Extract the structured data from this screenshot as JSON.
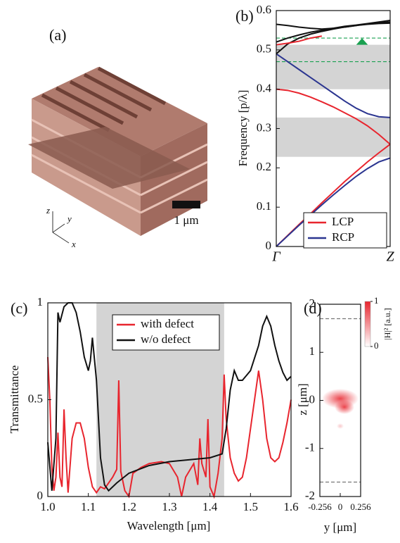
{
  "illustration": {
    "label": "(a)",
    "scale_bar": "1 μm",
    "axes": [
      "z",
      "y",
      "x"
    ]
  },
  "chart_data": [
    {
      "type": "line",
      "label": "(b)",
      "ylabel": "Frequency [p/λ]",
      "xlim": [
        0,
        1
      ],
      "xticks": [
        {
          "value": 0,
          "label": "Γ"
        },
        {
          "value": 1,
          "label": "Z"
        }
      ],
      "ylim": [
        0,
        0.6
      ],
      "yticks": [
        0,
        0.1,
        0.2,
        0.3,
        0.4,
        0.5,
        0.6
      ],
      "bands": [
        [
          0.228,
          0.328
        ],
        [
          0.4,
          0.513
        ]
      ],
      "band_color": "#d4d4d4",
      "hlines": [
        0.47,
        0.53
      ],
      "hline_color": "#1aa050",
      "x": [
        0,
        0.1,
        0.2,
        0.3,
        0.4,
        0.5,
        0.6,
        0.7,
        0.8,
        0.9,
        1
      ],
      "series": [
        {
          "name": "LCP",
          "color": "#e8252e",
          "values": [
            0,
            0.028,
            0.056,
            0.083,
            0.111,
            0.138,
            0.165,
            0.19,
            0.215,
            0.238,
            0.26
          ]
        },
        {
          "name": "RCP",
          "color": "#2b3590",
          "values": [
            0,
            0.027,
            0.054,
            0.08,
            0.106,
            0.131,
            0.155,
            0.178,
            0.198,
            0.215,
            0.225
          ]
        },
        {
          "color": "#e8252e",
          "values": [
            0.4,
            0.397,
            0.39,
            0.38,
            0.368,
            0.355,
            0.34,
            0.325,
            0.307,
            0.285,
            0.26
          ]
        },
        {
          "color": "#2b3590",
          "values": [
            0.49,
            0.47,
            0.45,
            0.43,
            0.41,
            0.39,
            0.37,
            0.352,
            0.338,
            0.33,
            0.328
          ]
        },
        {
          "color": "#111111",
          "values": [
            0.49,
            0.515,
            0.53,
            0.54,
            0.547,
            0.553,
            0.558,
            0.562,
            0.565,
            0.567,
            0.568
          ]
        },
        {
          "color": "#111111",
          "values": [
            0.565,
            0.562,
            0.558,
            0.555,
            0.553,
            0.555,
            0.558,
            0.562,
            0.566,
            0.569,
            0.571
          ]
        },
        {
          "color": "#111111",
          "values": [
            0.52,
            0.53,
            0.538,
            0.545,
            0.55,
            0.555,
            0.56,
            0.563,
            0.567,
            0.571,
            0.575
          ]
        },
        {
          "color": "#e8252e",
          "values": [
            0.513,
            0.517,
            0.522,
            0.53,
            0.535,
            null,
            null,
            null,
            null,
            null,
            null
          ]
        }
      ],
      "legend": "lower right"
    },
    {
      "type": "line",
      "label": "(c)",
      "xlabel": "Wavelength [μm]",
      "ylabel": "Transmittance",
      "xlim": [
        1.0,
        1.6
      ],
      "xticks": [
        {
          "value": 1.0,
          "label": "1.0"
        },
        {
          "value": 1.1,
          "label": "1.1"
        },
        {
          "value": 1.2,
          "label": "1.2"
        },
        {
          "value": 1.3,
          "label": "1.3"
        },
        {
          "value": 1.4,
          "label": "1.4"
        },
        {
          "value": 1.5,
          "label": "1.5"
        },
        {
          "value": 1.6,
          "label": "1.6"
        }
      ],
      "ylim": [
        0,
        1
      ],
      "yticks": [
        0,
        0.5,
        1
      ],
      "shade": [
        1.12,
        1.435
      ],
      "band_color": "#d4d4d4",
      "series": [
        {
          "name": "with defect",
          "color": "#e8252e",
          "x": [
            1.0,
            1.005,
            1.01,
            1.015,
            1.02,
            1.025,
            1.03,
            1.035,
            1.04,
            1.045,
            1.05,
            1.06,
            1.07,
            1.08,
            1.09,
            1.1,
            1.11,
            1.12,
            1.13,
            1.14,
            1.15,
            1.16,
            1.17,
            1.175,
            1.18,
            1.19,
            1.2,
            1.21,
            1.23,
            1.25,
            1.28,
            1.3,
            1.32,
            1.33,
            1.34,
            1.36,
            1.37,
            1.375,
            1.38,
            1.39,
            1.395,
            1.4,
            1.41,
            1.42,
            1.43,
            1.435,
            1.44,
            1.45,
            1.46,
            1.47,
            1.48,
            1.49,
            1.5,
            1.51,
            1.52,
            1.53,
            1.54,
            1.55,
            1.56,
            1.57,
            1.58,
            1.59,
            1.6
          ],
          "values": [
            0.72,
            0.5,
            0.15,
            0.03,
            0.1,
            0.33,
            0.1,
            0.05,
            0.45,
            0.2,
            0.02,
            0.3,
            0.38,
            0.38,
            0.3,
            0.15,
            0.05,
            0.02,
            0.05,
            0.04,
            0.07,
            0.1,
            0.14,
            0.6,
            0.13,
            0.03,
            0.0,
            0.12,
            0.15,
            0.17,
            0.18,
            0.17,
            0.1,
            0.0,
            0.1,
            0.17,
            0.06,
            0.3,
            0.17,
            0.1,
            0.4,
            0.05,
            0.0,
            0.12,
            0.3,
            0.63,
            0.4,
            0.2,
            0.12,
            0.08,
            0.1,
            0.2,
            0.35,
            0.5,
            0.65,
            0.5,
            0.3,
            0.2,
            0.18,
            0.2,
            0.28,
            0.38,
            0.5
          ]
        },
        {
          "name": "w/o defect",
          "color": "#111111",
          "x": [
            1.0,
            1.01,
            1.02,
            1.025,
            1.03,
            1.04,
            1.05,
            1.06,
            1.07,
            1.08,
            1.09,
            1.1,
            1.105,
            1.11,
            1.12,
            1.13,
            1.14,
            1.15,
            1.17,
            1.2,
            1.25,
            1.3,
            1.35,
            1.4,
            1.43,
            1.44,
            1.45,
            1.46,
            1.47,
            1.48,
            1.5,
            1.52,
            1.53,
            1.54,
            1.55,
            1.56,
            1.57,
            1.58,
            1.59,
            1.6
          ],
          "values": [
            0.28,
            0.03,
            0.3,
            0.95,
            0.9,
            0.98,
            1.0,
            1.0,
            0.95,
            0.85,
            0.72,
            0.65,
            0.7,
            0.82,
            0.6,
            0.2,
            0.06,
            0.03,
            0.07,
            0.12,
            0.16,
            0.18,
            0.19,
            0.2,
            0.22,
            0.35,
            0.55,
            0.65,
            0.6,
            0.6,
            0.65,
            0.78,
            0.88,
            0.93,
            0.88,
            0.78,
            0.7,
            0.64,
            0.6,
            0.62
          ]
        }
      ],
      "legend": "upper center"
    },
    {
      "type": "map",
      "label": "(d)",
      "xlabel": "y [μm]",
      "ylabel": "z [μm]",
      "xlim": [
        -0.256,
        0.256
      ],
      "xticks": [
        -0.256,
        0,
        0.256
      ],
      "ylim": [
        -2,
        2
      ],
      "yticks": [
        -2,
        -1,
        0,
        1,
        2
      ],
      "hlines": [
        -1.7,
        1.7
      ],
      "hline_color": "#777777",
      "colorbar": {
        "label": "|H|² [a.u.]",
        "ticks": [
          0,
          1
        ],
        "color": "#e8252e"
      }
    }
  ]
}
